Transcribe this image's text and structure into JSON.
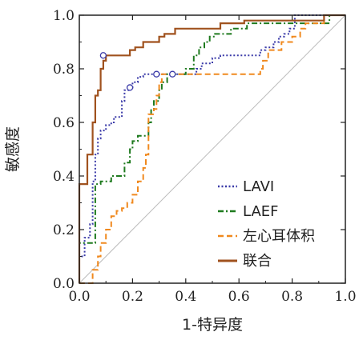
{
  "chart_data": {
    "type": "line",
    "xlabel": "1-特异度",
    "ylabel": "敏感度",
    "xlim": [
      0,
      1
    ],
    "ylim": [
      0,
      1
    ],
    "x_ticks": [
      "0.0",
      "0.2",
      "0.4",
      "0.6",
      "0.8",
      "1.0"
    ],
    "y_ticks": [
      "0.0",
      "0.2",
      "0.4",
      "0.6",
      "0.8",
      "1.0"
    ],
    "grid": false,
    "legend_position": "bottom-right",
    "reference_line": {
      "from": [
        0,
        0
      ],
      "to": [
        1,
        1
      ],
      "color": "#bbbbbb"
    },
    "series": [
      {
        "name": "LAVI",
        "color": "#3a3aa8",
        "style": "dotted",
        "points": [
          [
            0,
            0
          ],
          [
            0,
            0.1
          ],
          [
            0.02,
            0.1
          ],
          [
            0.02,
            0.17
          ],
          [
            0.04,
            0.17
          ],
          [
            0.04,
            0.22
          ],
          [
            0.05,
            0.22
          ],
          [
            0.05,
            0.38
          ],
          [
            0.06,
            0.38
          ],
          [
            0.06,
            0.48
          ],
          [
            0.07,
            0.48
          ],
          [
            0.07,
            0.54
          ],
          [
            0.08,
            0.54
          ],
          [
            0.08,
            0.57
          ],
          [
            0.1,
            0.57
          ],
          [
            0.1,
            0.59
          ],
          [
            0.12,
            0.59
          ],
          [
            0.12,
            0.6
          ],
          [
            0.13,
            0.6
          ],
          [
            0.13,
            0.62
          ],
          [
            0.16,
            0.62
          ],
          [
            0.16,
            0.68
          ],
          [
            0.17,
            0.68
          ],
          [
            0.17,
            0.72
          ],
          [
            0.19,
            0.72
          ],
          [
            0.19,
            0.73
          ],
          [
            0.2,
            0.73
          ],
          [
            0.2,
            0.75
          ],
          [
            0.22,
            0.75
          ],
          [
            0.22,
            0.77
          ],
          [
            0.24,
            0.77
          ],
          [
            0.24,
            0.78
          ],
          [
            0.44,
            0.78
          ],
          [
            0.44,
            0.8
          ],
          [
            0.46,
            0.8
          ],
          [
            0.46,
            0.82
          ],
          [
            0.5,
            0.82
          ],
          [
            0.5,
            0.84
          ],
          [
            0.53,
            0.84
          ],
          [
            0.53,
            0.85
          ],
          [
            0.68,
            0.85
          ],
          [
            0.68,
            0.87
          ],
          [
            0.7,
            0.87
          ],
          [
            0.7,
            0.88
          ],
          [
            0.73,
            0.88
          ],
          [
            0.73,
            0.9
          ],
          [
            0.75,
            0.9
          ],
          [
            0.75,
            0.92
          ],
          [
            0.77,
            0.92
          ],
          [
            0.77,
            0.93
          ],
          [
            0.79,
            0.93
          ],
          [
            0.79,
            0.95
          ],
          [
            0.81,
            0.95
          ],
          [
            0.81,
            1
          ],
          [
            1,
            1
          ]
        ],
        "markers": [
          [
            0.19,
            0.73
          ]
        ]
      },
      {
        "name": "LAEF",
        "color": "#1e7a1e",
        "style": "dash-dot",
        "points": [
          [
            0,
            0
          ],
          [
            0,
            0.15
          ],
          [
            0.06,
            0.15
          ],
          [
            0.06,
            0.37
          ],
          [
            0.08,
            0.37
          ],
          [
            0.08,
            0.38
          ],
          [
            0.12,
            0.38
          ],
          [
            0.12,
            0.4
          ],
          [
            0.17,
            0.4
          ],
          [
            0.17,
            0.45
          ],
          [
            0.19,
            0.45
          ],
          [
            0.19,
            0.5
          ],
          [
            0.2,
            0.5
          ],
          [
            0.2,
            0.53
          ],
          [
            0.22,
            0.53
          ],
          [
            0.22,
            0.55
          ],
          [
            0.26,
            0.55
          ],
          [
            0.26,
            0.6
          ],
          [
            0.27,
            0.6
          ],
          [
            0.27,
            0.65
          ],
          [
            0.28,
            0.65
          ],
          [
            0.28,
            0.68
          ],
          [
            0.3,
            0.68
          ],
          [
            0.3,
            0.72
          ],
          [
            0.31,
            0.72
          ],
          [
            0.31,
            0.75
          ],
          [
            0.33,
            0.75
          ],
          [
            0.33,
            0.78
          ],
          [
            0.4,
            0.78
          ],
          [
            0.4,
            0.8
          ],
          [
            0.43,
            0.8
          ],
          [
            0.43,
            0.85
          ],
          [
            0.45,
            0.85
          ],
          [
            0.45,
            0.88
          ],
          [
            0.47,
            0.88
          ],
          [
            0.47,
            0.9
          ],
          [
            0.49,
            0.9
          ],
          [
            0.49,
            0.92
          ],
          [
            0.51,
            0.92
          ],
          [
            0.51,
            0.93
          ],
          [
            0.57,
            0.93
          ],
          [
            0.57,
            0.95
          ],
          [
            0.63,
            0.95
          ],
          [
            0.63,
            0.97
          ],
          [
            0.94,
            0.97
          ],
          [
            0.94,
            1
          ],
          [
            1,
            1
          ]
        ],
        "markers": [
          [
            0.29,
            0.78
          ]
        ]
      },
      {
        "name": "左心耳体积",
        "color": "#f0891e",
        "style": "dashed",
        "points": [
          [
            0,
            0
          ],
          [
            0.05,
            0
          ],
          [
            0.05,
            0.05
          ],
          [
            0.07,
            0.05
          ],
          [
            0.07,
            0.1
          ],
          [
            0.08,
            0.1
          ],
          [
            0.08,
            0.15
          ],
          [
            0.1,
            0.15
          ],
          [
            0.1,
            0.2
          ],
          [
            0.12,
            0.2
          ],
          [
            0.12,
            0.25
          ],
          [
            0.14,
            0.25
          ],
          [
            0.14,
            0.27
          ],
          [
            0.16,
            0.27
          ],
          [
            0.16,
            0.28
          ],
          [
            0.18,
            0.28
          ],
          [
            0.18,
            0.3
          ],
          [
            0.2,
            0.3
          ],
          [
            0.2,
            0.33
          ],
          [
            0.22,
            0.33
          ],
          [
            0.22,
            0.38
          ],
          [
            0.24,
            0.38
          ],
          [
            0.24,
            0.43
          ],
          [
            0.25,
            0.43
          ],
          [
            0.25,
            0.48
          ],
          [
            0.26,
            0.48
          ],
          [
            0.26,
            0.63
          ],
          [
            0.28,
            0.63
          ],
          [
            0.28,
            0.65
          ],
          [
            0.29,
            0.65
          ],
          [
            0.29,
            0.7
          ],
          [
            0.3,
            0.7
          ],
          [
            0.3,
            0.75
          ],
          [
            0.31,
            0.75
          ],
          [
            0.31,
            0.78
          ],
          [
            0.68,
            0.78
          ],
          [
            0.68,
            0.8
          ],
          [
            0.69,
            0.8
          ],
          [
            0.69,
            0.83
          ],
          [
            0.71,
            0.83
          ],
          [
            0.71,
            0.87
          ],
          [
            0.76,
            0.87
          ],
          [
            0.76,
            0.9
          ],
          [
            0.8,
            0.9
          ],
          [
            0.8,
            0.92
          ],
          [
            0.83,
            0.92
          ],
          [
            0.83,
            0.95
          ],
          [
            0.85,
            0.95
          ],
          [
            0.85,
            0.97
          ],
          [
            0.92,
            0.97
          ],
          [
            0.92,
            1
          ],
          [
            1,
            1
          ]
        ],
        "markers": [
          [
            0.35,
            0.78
          ]
        ]
      },
      {
        "name": "联合",
        "color": "#a0521e",
        "style": "solid",
        "points": [
          [
            0,
            0
          ],
          [
            0,
            0.37
          ],
          [
            0.03,
            0.37
          ],
          [
            0.03,
            0.48
          ],
          [
            0.05,
            0.48
          ],
          [
            0.05,
            0.6
          ],
          [
            0.06,
            0.6
          ],
          [
            0.06,
            0.7
          ],
          [
            0.07,
            0.7
          ],
          [
            0.07,
            0.72
          ],
          [
            0.08,
            0.72
          ],
          [
            0.08,
            0.8
          ],
          [
            0.09,
            0.8
          ],
          [
            0.09,
            0.83
          ],
          [
            0.1,
            0.83
          ],
          [
            0.1,
            0.85
          ],
          [
            0.19,
            0.85
          ],
          [
            0.19,
            0.87
          ],
          [
            0.21,
            0.87
          ],
          [
            0.21,
            0.88
          ],
          [
            0.24,
            0.88
          ],
          [
            0.24,
            0.9
          ],
          [
            0.3,
            0.9
          ],
          [
            0.3,
            0.92
          ],
          [
            0.32,
            0.92
          ],
          [
            0.32,
            0.93
          ],
          [
            0.36,
            0.93
          ],
          [
            0.36,
            0.95
          ],
          [
            0.53,
            0.95
          ],
          [
            0.53,
            0.97
          ],
          [
            0.62,
            0.97
          ],
          [
            0.62,
            0.98
          ],
          [
            0.92,
            0.98
          ],
          [
            0.92,
            1
          ],
          [
            1,
            1
          ]
        ],
        "markers": [
          [
            0.09,
            0.85
          ]
        ]
      }
    ]
  }
}
